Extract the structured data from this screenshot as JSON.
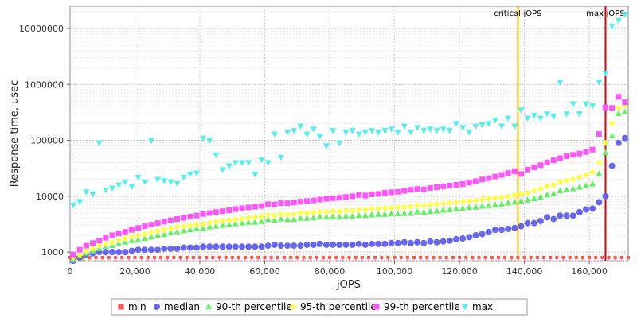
{
  "chart_data": {
    "type": "scatter",
    "xlabel": "jOPS",
    "ylabel": "Response time, usec",
    "xlim": [
      0,
      172000
    ],
    "ylim": [
      700,
      25000000
    ],
    "y_scale": "log",
    "x_ticks": [
      0,
      20000,
      40000,
      60000,
      80000,
      100000,
      120000,
      140000,
      160000
    ],
    "x_tick_labels": [
      "0",
      "20,000",
      "40,000",
      "60,000",
      "80,000",
      "100,000",
      "120,000",
      "140,000",
      "160,000"
    ],
    "y_ticks": [
      1000,
      10000,
      100000,
      1000000,
      10000000
    ],
    "y_tick_labels": [
      "1000",
      "10000",
      "100000",
      "1000000",
      "10000000"
    ],
    "grid": true,
    "legend_position": "bottom",
    "markers": [
      {
        "label": "critical-jOPS",
        "x": 138000,
        "color": "#f5b800"
      },
      {
        "label": "max-jOPS",
        "x": 165000,
        "color": "#e00000"
      }
    ],
    "series": [
      {
        "name": "min",
        "color": "#ff5555",
        "shape": "square",
        "x": [
          0,
          2000,
          4000,
          6000,
          8000,
          10000,
          12000,
          14000,
          16000,
          18000,
          20000,
          22000,
          24000,
          26000,
          28000,
          30000,
          32000,
          34000,
          36000,
          38000,
          40000,
          42000,
          44000,
          46000,
          48000,
          50000,
          52000,
          54000,
          56000,
          58000,
          60000,
          62000,
          64000,
          66000,
          68000,
          70000,
          72000,
          74000,
          76000,
          78000,
          80000,
          82000,
          84000,
          86000,
          88000,
          90000,
          92000,
          94000,
          96000,
          98000,
          100000,
          102000,
          104000,
          106000,
          108000,
          110000,
          112000,
          114000,
          116000,
          118000,
          120000,
          122000,
          124000,
          126000,
          128000,
          130000,
          132000,
          134000,
          136000,
          138000,
          140000,
          142000,
          144000,
          146000,
          148000,
          150000,
          152000,
          154000,
          156000,
          158000,
          160000,
          162000,
          164000,
          166000,
          168000,
          170000,
          172000
        ],
        "values": [
          800,
          800,
          800,
          800,
          800,
          800,
          800,
          800,
          800,
          800,
          800,
          800,
          800,
          800,
          800,
          800,
          800,
          800,
          800,
          800,
          800,
          800,
          800,
          800,
          800,
          800,
          800,
          800,
          800,
          800,
          800,
          800,
          800,
          800,
          800,
          800,
          800,
          800,
          800,
          800,
          800,
          800,
          800,
          800,
          800,
          800,
          800,
          800,
          800,
          800,
          800,
          800,
          800,
          800,
          800,
          800,
          800,
          800,
          800,
          800,
          800,
          800,
          800,
          800,
          800,
          800,
          800,
          800,
          800,
          800,
          800,
          800,
          800,
          800,
          800,
          800,
          800,
          800,
          800,
          800,
          800,
          800,
          800,
          800,
          800,
          800,
          800
        ]
      },
      {
        "name": "median",
        "color": "#6666ee",
        "shape": "circle",
        "x": [
          1000,
          3000,
          5000,
          7000,
          9000,
          11000,
          13000,
          15000,
          17000,
          19000,
          21000,
          23000,
          25000,
          27000,
          29000,
          31000,
          33000,
          35000,
          37000,
          39000,
          41000,
          43000,
          45000,
          47000,
          49000,
          51000,
          53000,
          55000,
          57000,
          59000,
          61000,
          63000,
          65000,
          67000,
          69000,
          71000,
          73000,
          75000,
          77000,
          79000,
          81000,
          83000,
          85000,
          87000,
          89000,
          91000,
          93000,
          95000,
          97000,
          99000,
          101000,
          103000,
          105000,
          107000,
          109000,
          111000,
          113000,
          115000,
          117000,
          119000,
          121000,
          123000,
          125000,
          127000,
          129000,
          131000,
          133000,
          135000,
          137000,
          139000,
          141000,
          143000,
          145000,
          147000,
          149000,
          151000,
          153000,
          155000,
          157000,
          159000,
          161000,
          163000,
          165000,
          167000,
          169000,
          171000
        ],
        "values": [
          700,
          800,
          900,
          950,
          1000,
          1000,
          1000,
          1000,
          1000,
          1050,
          1100,
          1100,
          1100,
          1100,
          1150,
          1150,
          1150,
          1200,
          1200,
          1200,
          1250,
          1250,
          1250,
          1250,
          1250,
          1250,
          1250,
          1250,
          1250,
          1250,
          1300,
          1350,
          1300,
          1300,
          1300,
          1300,
          1350,
          1350,
          1400,
          1350,
          1350,
          1350,
          1350,
          1350,
          1400,
          1350,
          1400,
          1400,
          1400,
          1450,
          1450,
          1500,
          1450,
          1500,
          1450,
          1550,
          1500,
          1550,
          1600,
          1700,
          1750,
          1850,
          2000,
          2100,
          2300,
          2500,
          2500,
          2600,
          2700,
          2900,
          3300,
          3300,
          3600,
          4200,
          3900,
          4500,
          4500,
          4500,
          5200,
          5800,
          6000,
          7800,
          10000,
          35000,
          90000,
          110000
        ]
      },
      {
        "name": "90-th percentile",
        "color": "#66ee66",
        "shape": "triangle-up",
        "x": [
          1000,
          3000,
          5000,
          7000,
          9000,
          11000,
          13000,
          15000,
          17000,
          19000,
          21000,
          23000,
          25000,
          27000,
          29000,
          31000,
          33000,
          35000,
          37000,
          39000,
          41000,
          43000,
          45000,
          47000,
          49000,
          51000,
          53000,
          55000,
          57000,
          59000,
          61000,
          63000,
          65000,
          67000,
          69000,
          71000,
          73000,
          75000,
          77000,
          79000,
          81000,
          83000,
          85000,
          87000,
          89000,
          91000,
          93000,
          95000,
          97000,
          99000,
          101000,
          103000,
          105000,
          107000,
          109000,
          111000,
          113000,
          115000,
          117000,
          119000,
          121000,
          123000,
          125000,
          127000,
          129000,
          131000,
          133000,
          135000,
          137000,
          139000,
          141000,
          143000,
          145000,
          147000,
          149000,
          151000,
          153000,
          155000,
          157000,
          159000,
          161000,
          163000,
          165000,
          167000,
          169000,
          171000
        ],
        "values": [
          750,
          850,
          950,
          1050,
          1150,
          1250,
          1300,
          1400,
          1500,
          1600,
          1650,
          1750,
          1850,
          2000,
          2050,
          2200,
          2300,
          2400,
          2500,
          2600,
          2650,
          2800,
          2900,
          3000,
          3100,
          3200,
          3300,
          3400,
          3400,
          3500,
          3800,
          3700,
          3900,
          3800,
          3800,
          4000,
          4000,
          4100,
          4300,
          4200,
          4300,
          4200,
          4400,
          4300,
          4500,
          4500,
          4600,
          4700,
          4700,
          4800,
          4800,
          4900,
          4900,
          5200,
          5100,
          5300,
          5400,
          5600,
          5700,
          5900,
          6000,
          6200,
          6300,
          6600,
          6800,
          7000,
          7200,
          7500,
          7800,
          8100,
          8500,
          9000,
          9600,
          10500,
          11000,
          12500,
          13000,
          13500,
          14500,
          15500,
          16500,
          25000,
          60000,
          120000,
          300000,
          320000
        ]
      },
      {
        "name": "95-th percentile",
        "color": "#ffff44",
        "shape": "diamond",
        "x": [
          1000,
          3000,
          5000,
          7000,
          9000,
          11000,
          13000,
          15000,
          17000,
          19000,
          21000,
          23000,
          25000,
          27000,
          29000,
          31000,
          33000,
          35000,
          37000,
          39000,
          41000,
          43000,
          45000,
          47000,
          49000,
          51000,
          53000,
          55000,
          57000,
          59000,
          61000,
          63000,
          65000,
          67000,
          69000,
          71000,
          73000,
          75000,
          77000,
          79000,
          81000,
          83000,
          85000,
          87000,
          89000,
          91000,
          93000,
          95000,
          97000,
          99000,
          101000,
          103000,
          105000,
          107000,
          109000,
          111000,
          113000,
          115000,
          117000,
          119000,
          121000,
          123000,
          125000,
          127000,
          129000,
          131000,
          133000,
          135000,
          137000,
          139000,
          141000,
          143000,
          145000,
          147000,
          149000,
          151000,
          153000,
          155000,
          157000,
          159000,
          161000,
          163000,
          165000,
          167000,
          169000,
          171000
        ],
        "values": [
          800,
          900,
          1050,
          1150,
          1300,
          1400,
          1500,
          1650,
          1750,
          1900,
          2000,
          2100,
          2250,
          2400,
          2500,
          2650,
          2800,
          2900,
          3000,
          3100,
          3200,
          3350,
          3500,
          3600,
          3700,
          3850,
          3950,
          4100,
          4200,
          4300,
          4600,
          4500,
          4800,
          4700,
          4700,
          5000,
          5000,
          5100,
          5300,
          5200,
          5400,
          5300,
          5500,
          5500,
          5700,
          5800,
          5900,
          6000,
          6100,
          6200,
          6300,
          6400,
          6500,
          6900,
          6800,
          7000,
          7200,
          7400,
          7600,
          7800,
          8000,
          8200,
          8400,
          8800,
          9000,
          9300,
          9600,
          10000,
          10500,
          11000,
          11500,
          12500,
          13500,
          15000,
          16000,
          18000,
          19000,
          20000,
          22000,
          24000,
          27000,
          40000,
          90000,
          200000,
          380000,
          420000
        ]
      },
      {
        "name": "99-th percentile",
        "color": "#ff55ff",
        "shape": "square",
        "x": [
          1000,
          3000,
          5000,
          7000,
          9000,
          11000,
          13000,
          15000,
          17000,
          19000,
          21000,
          23000,
          25000,
          27000,
          29000,
          31000,
          33000,
          35000,
          37000,
          39000,
          41000,
          43000,
          45000,
          47000,
          49000,
          51000,
          53000,
          55000,
          57000,
          59000,
          61000,
          63000,
          65000,
          67000,
          69000,
          71000,
          73000,
          75000,
          77000,
          79000,
          81000,
          83000,
          85000,
          87000,
          89000,
          91000,
          93000,
          95000,
          97000,
          99000,
          101000,
          103000,
          105000,
          107000,
          109000,
          111000,
          113000,
          115000,
          117000,
          119000,
          121000,
          123000,
          125000,
          127000,
          129000,
          131000,
          133000,
          135000,
          137000,
          139000,
          141000,
          143000,
          145000,
          147000,
          149000,
          151000,
          153000,
          155000,
          157000,
          159000,
          161000,
          163000,
          165000,
          167000,
          169000,
          171000
        ],
        "values": [
          900,
          1100,
          1300,
          1450,
          1600,
          1800,
          2000,
          2150,
          2300,
          2500,
          2700,
          2900,
          3100,
          3300,
          3500,
          3700,
          3900,
          4100,
          4300,
          4500,
          4800,
          5000,
          5200,
          5400,
          5600,
          5900,
          6100,
          6300,
          6500,
          6700,
          7200,
          7100,
          7500,
          7500,
          7700,
          8000,
          8200,
          8400,
          8700,
          9000,
          9200,
          9400,
          9700,
          10000,
          10500,
          10300,
          10800,
          11000,
          11500,
          11800,
          12000,
          12500,
          13000,
          13500,
          13200,
          14000,
          14500,
          15000,
          15500,
          16000,
          16500,
          17500,
          18500,
          20000,
          21000,
          22500,
          24000,
          26000,
          28000,
          25000,
          30000,
          33000,
          36000,
          40000,
          44000,
          48000,
          52000,
          55000,
          58000,
          62000,
          68000,
          130000,
          390000,
          380000,
          600000,
          480000
        ]
      },
      {
        "name": "max",
        "color": "#55eeee",
        "shape": "triangle-down",
        "x": [
          1000,
          3000,
          5000,
          7000,
          9000,
          11000,
          13000,
          15000,
          17000,
          19000,
          21000,
          23000,
          25000,
          27000,
          29000,
          31000,
          33000,
          35000,
          37000,
          39000,
          41000,
          43000,
          45000,
          47000,
          49000,
          51000,
          53000,
          55000,
          57000,
          59000,
          61000,
          63000,
          65000,
          67000,
          69000,
          71000,
          73000,
          75000,
          77000,
          79000,
          81000,
          83000,
          85000,
          87000,
          89000,
          91000,
          93000,
          95000,
          97000,
          99000,
          101000,
          103000,
          105000,
          107000,
          109000,
          111000,
          113000,
          115000,
          117000,
          119000,
          121000,
          123000,
          125000,
          127000,
          129000,
          131000,
          133000,
          135000,
          137000,
          139000,
          141000,
          143000,
          145000,
          147000,
          149000,
          151000,
          153000,
          155000,
          157000,
          159000,
          161000,
          163000,
          165000,
          167000,
          169000,
          171000
        ],
        "values": [
          7000,
          8000,
          12000,
          11000,
          90000,
          13000,
          14000,
          16000,
          18000,
          15000,
          22000,
          18000,
          100000,
          20000,
          19000,
          18000,
          17000,
          22000,
          25000,
          26000,
          110000,
          100000,
          55000,
          30000,
          35000,
          40000,
          40000,
          40000,
          25000,
          45000,
          40000,
          130000,
          50000,
          140000,
          150000,
          180000,
          130000,
          160000,
          120000,
          80000,
          150000,
          90000,
          140000,
          150000,
          130000,
          140000,
          150000,
          140000,
          150000,
          160000,
          140000,
          180000,
          140000,
          170000,
          150000,
          160000,
          150000,
          160000,
          150000,
          200000,
          170000,
          140000,
          180000,
          190000,
          200000,
          230000,
          180000,
          250000,
          180000,
          350000,
          250000,
          280000,
          250000,
          300000,
          270000,
          1100000,
          300000,
          450000,
          300000,
          450000,
          420000,
          1100000,
          1600000,
          11000000,
          14000000,
          18000000
        ]
      }
    ]
  }
}
